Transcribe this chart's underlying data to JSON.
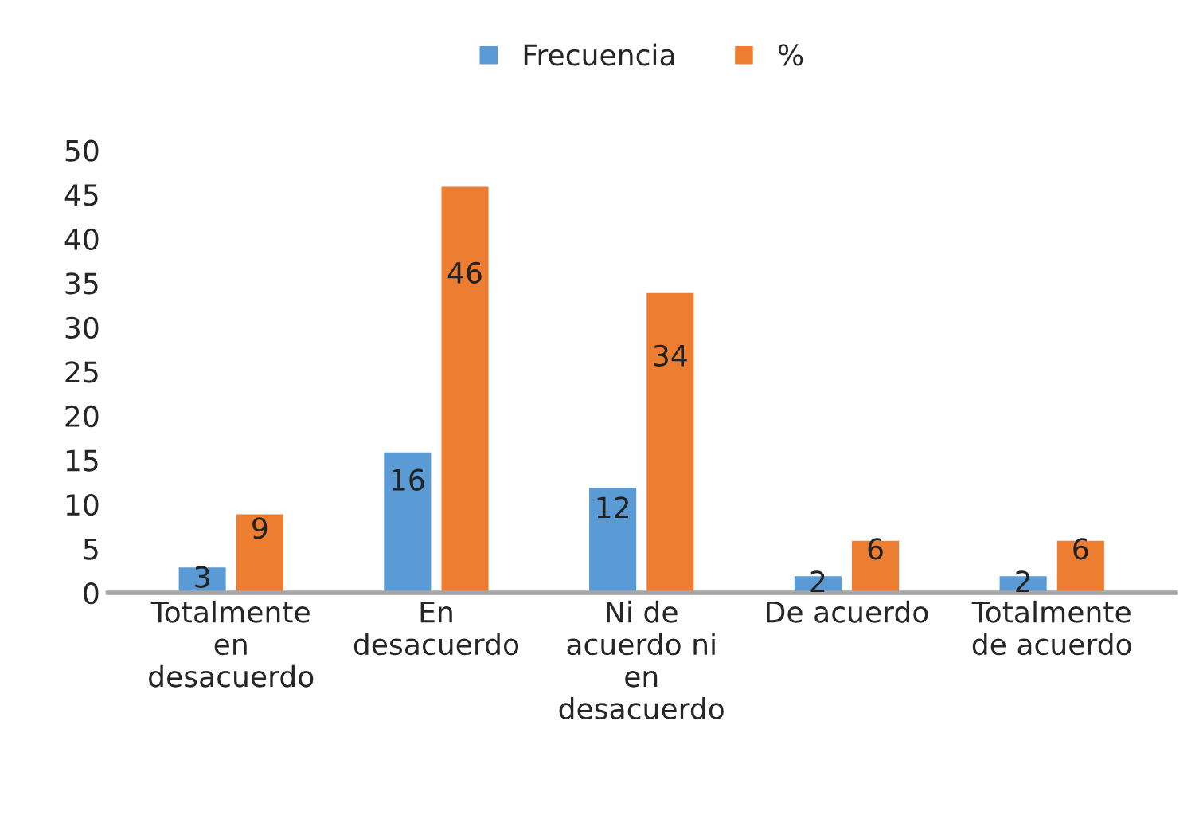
{
  "chart_data": {
    "type": "bar",
    "categories": [
      "Totalmente en desacuerdo",
      "En desacuerdo",
      "Ni de acuerdo ni en desacuerdo",
      "De acuerdo",
      "Totalmente de acuerdo"
    ],
    "series": [
      {
        "name": "Frecuencia",
        "color": "#5b9bd5",
        "values": [
          3,
          16,
          12,
          2,
          2
        ]
      },
      {
        "name": "%",
        "color": "#ed7d31",
        "values": [
          9,
          46,
          34,
          6,
          6
        ]
      }
    ],
    "ylim": [
      0,
      50
    ],
    "yticks": [
      0,
      5,
      10,
      15,
      20,
      25,
      30,
      35,
      40,
      45,
      50
    ],
    "grid": false,
    "legend": "top",
    "data_labels": true
  }
}
